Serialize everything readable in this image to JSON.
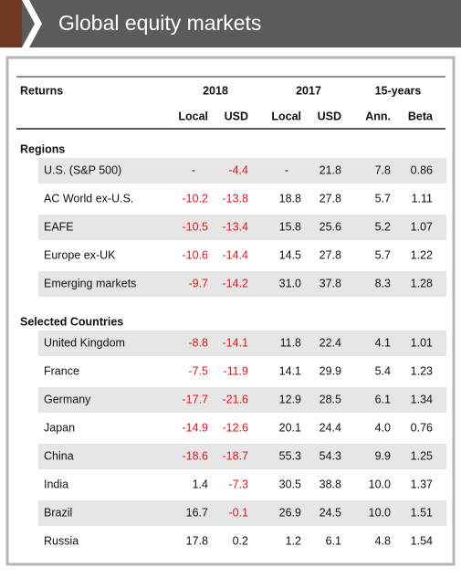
{
  "header": {
    "title": "Global equity markets"
  },
  "table": {
    "group_headers": [
      "Returns",
      "2018",
      "2017",
      "15-years"
    ],
    "sub_headers": [
      "Local",
      "USD",
      "Local",
      "USD",
      "Ann.",
      "Beta"
    ],
    "sections": [
      {
        "title": "Regions",
        "rows": [
          {
            "label": "U.S. (S&P 500)",
            "values": [
              "-",
              "-4.4",
              "-",
              "21.8",
              "7.8",
              "0.86"
            ]
          },
          {
            "label": "AC World ex-U.S.",
            "values": [
              "-10.2",
              "-13.8",
              "18.8",
              "27.8",
              "5.7",
              "1.11"
            ]
          },
          {
            "label": "EAFE",
            "values": [
              "-10.5",
              "-13.4",
              "15.8",
              "25.6",
              "5.2",
              "1.07"
            ]
          },
          {
            "label": "Europe ex-UK",
            "values": [
              "-10.6",
              "-14.4",
              "14.5",
              "27.8",
              "5.7",
              "1.22"
            ]
          },
          {
            "label": "Emerging markets",
            "values": [
              "-9.7",
              "-14.2",
              "31.0",
              "37.8",
              "8.3",
              "1.28"
            ]
          }
        ]
      },
      {
        "title": "Selected Countries",
        "rows": [
          {
            "label": "United Kingdom",
            "values": [
              "-8.8",
              "-14.1",
              "11.8",
              "22.4",
              "4.1",
              "1.01"
            ]
          },
          {
            "label": "France",
            "values": [
              "-7.5",
              "-11.9",
              "14.1",
              "29.9",
              "5.4",
              "1.23"
            ]
          },
          {
            "label": "Germany",
            "values": [
              "-17.7",
              "-21.6",
              "12.9",
              "28.5",
              "6.1",
              "1.34"
            ]
          },
          {
            "label": "Japan",
            "values": [
              "-14.9",
              "-12.6",
              "20.1",
              "24.4",
              "4.0",
              "0.76"
            ]
          },
          {
            "label": "China",
            "values": [
              "-18.6",
              "-18.7",
              "55.3",
              "54.3",
              "9.9",
              "1.25"
            ]
          },
          {
            "label": "India",
            "values": [
              "1.4",
              "-7.3",
              "30.5",
              "38.8",
              "10.0",
              "1.37"
            ]
          },
          {
            "label": "Brazil",
            "values": [
              "16.7",
              "-0.1",
              "26.9",
              "24.5",
              "10.0",
              "1.51"
            ]
          },
          {
            "label": "Russia",
            "values": [
              "17.8",
              "0.2",
              "1.2",
              "6.1",
              "4.8",
              "1.54"
            ]
          }
        ]
      }
    ]
  }
}
